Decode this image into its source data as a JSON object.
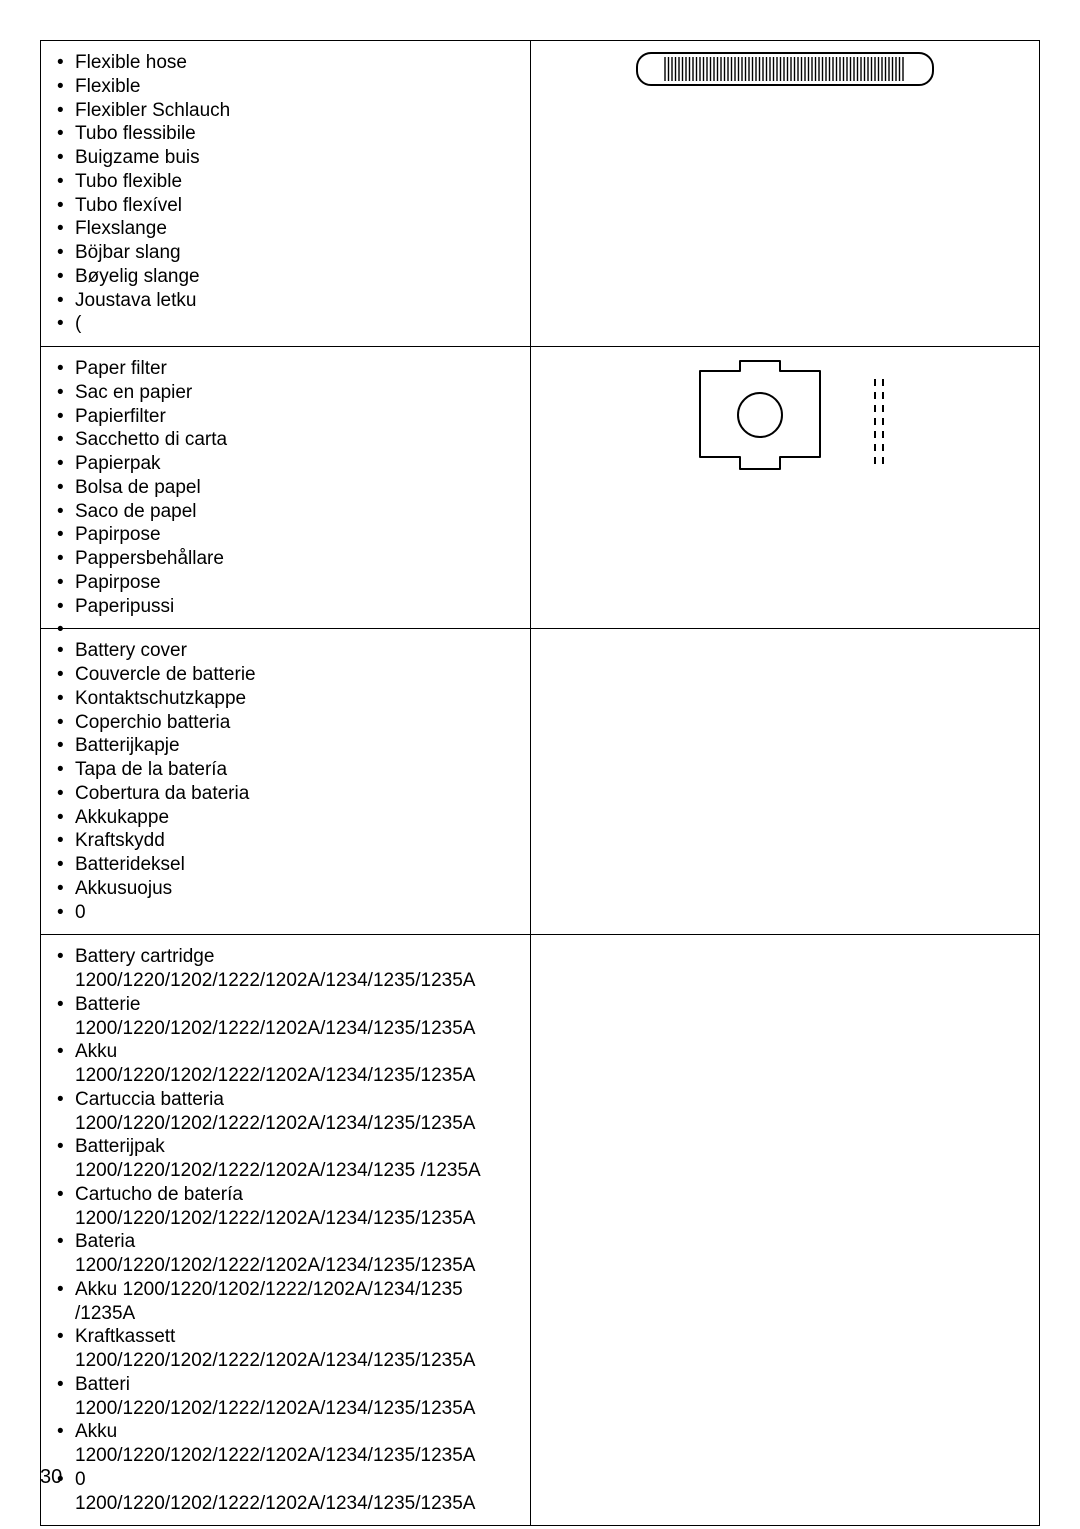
{
  "page_number": "30",
  "colors": {
    "border": "#000000",
    "text": "#000000",
    "background": "#ffffff"
  },
  "rows": [
    {
      "id": "hose",
      "diagram": "hose",
      "items": [
        {
          "label": "Flexible hose"
        },
        {
          "label": "Flexible"
        },
        {
          "label": "Flexibler Schlauch"
        },
        {
          "label": "Tubo flessibile"
        },
        {
          "label": "Buigzame buis"
        },
        {
          "label": "Tubo flexible"
        },
        {
          "label": "Tubo flexível"
        },
        {
          "label": "Flexslange"
        },
        {
          "label": "Böjbar slang"
        },
        {
          "label": "Bøyelig slange"
        },
        {
          "label": "Joustava letku"
        },
        {
          "label": "  ("
        }
      ]
    },
    {
      "id": "filter",
      "diagram": "filter",
      "items": [
        {
          "label": "Paper filter"
        },
        {
          "label": "Sac en papier"
        },
        {
          "label": "Papierfilter"
        },
        {
          "label": "Sacchetto di carta"
        },
        {
          "label": "Papierpak"
        },
        {
          "label": "Bolsa de papel"
        },
        {
          "label": "Saco de papel"
        },
        {
          "label": "Papirpose"
        },
        {
          "label": "Pappersbehållare"
        },
        {
          "label": "Papirpose"
        },
        {
          "label": "Paperipussi"
        },
        {
          "label": ""
        }
      ]
    },
    {
      "id": "cover",
      "diagram": "none",
      "items": [
        {
          "label": "Battery cover"
        },
        {
          "label": "Couvercle de batterie"
        },
        {
          "label": "Kontaktschutzkappe"
        },
        {
          "label": "Coperchio batteria"
        },
        {
          "label": "Batterijkapje"
        },
        {
          "label": "Tapa de la batería"
        },
        {
          "label": "Cobertura da bateria"
        },
        {
          "label": "Akkukappe"
        },
        {
          "label": "Kraftskydd"
        },
        {
          "label": "Batterideksel"
        },
        {
          "label": "Akkusuojus"
        },
        {
          "label": "0"
        }
      ]
    },
    {
      "id": "cartridge",
      "diagram": "none",
      "items": [
        {
          "label": "Battery cartridge",
          "sub": "1200/1220/1202/1222/1202A/1234/1235/1235A"
        },
        {
          "label": "Batterie",
          "sub": "1200/1220/1202/1222/1202A/1234/1235/1235A"
        },
        {
          "label": "Akku  1200/1220/1202/1222/1202A/1234/1235/1235A"
        },
        {
          "label": "Cartuccia batteria",
          "sub": "1200/1220/1202/1222/1202A/1234/1235/1235A"
        },
        {
          "label": "Batterijpak",
          "sub": "1200/1220/1202/1222/1202A/1234/1235 /1235A"
        },
        {
          "label": "Cartucho de batería",
          "sub": "1200/1220/1202/1222/1202A/1234/1235/1235A"
        },
        {
          "label": "Bateria",
          "sub": "1200/1220/1202/1222/1202A/1234/1235/1235A"
        },
        {
          "label": "Akku 1200/1220/1202/1222/1202A/1234/1235 /1235A"
        },
        {
          "label": "Kraftkassett",
          "sub": "1200/1220/1202/1222/1202A/1234/1235/1235A"
        },
        {
          "label": "Batteri",
          "sub": "1200/1220/1202/1222/1202A/1234/1235/1235A"
        },
        {
          "label": "Akku 1200/1220/1202/1222/1202A/1234/1235/1235A"
        },
        {
          "label": "0",
          "sub": "1200/1220/1202/1222/1202A/1234/1235/1235A"
        }
      ]
    }
  ]
}
